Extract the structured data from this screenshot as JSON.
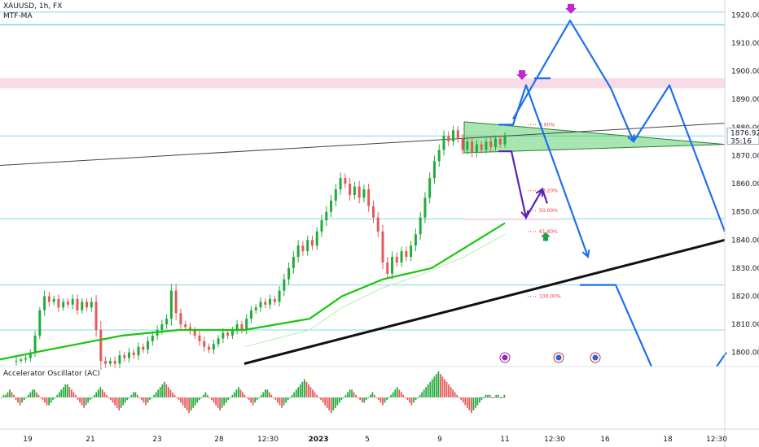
{
  "header": {
    "symbol": "XAUUSD, 1h, FX",
    "indicator": "MTF-MA",
    "oscillator": "Accelerator Oscillator (AC)"
  },
  "price_box": {
    "price": "1876.92",
    "countdown": "35:16"
  },
  "colors": {
    "bull": "#22ab3a",
    "bear": "#e45a5a",
    "ma": "#1ac40f",
    "projection": "#1e6ff0",
    "fib": "#f23645",
    "level": "#7fd8e8",
    "zone": "#f7dbe6",
    "marker_down": "#c026d3",
    "marker_up": "#16a34a",
    "purple_path": "#5b21b6"
  },
  "chart_data": {
    "type": "candlestick",
    "ylim": [
      1795,
      1923
    ],
    "y_ticks": [
      "1920.00",
      "1910.00",
      "1900.00",
      "1890.00",
      "1880.00",
      "1870.00",
      "1860.00",
      "1850.00",
      "1840.00",
      "1830.00",
      "1820.00",
      "1810.00",
      "1800.00"
    ],
    "y_values": [
      1920,
      1910,
      1900,
      1890,
      1880,
      1870,
      1860,
      1850,
      1840,
      1830,
      1820,
      1810,
      1800
    ],
    "x_ticks": [
      "19",
      "21",
      "23",
      "28",
      "12:30",
      "2023",
      "5",
      "9",
      "11",
      "12:30",
      "16",
      "18",
      "12:30"
    ],
    "horizontal_levels": [
      1921,
      1916.5,
      1877,
      1847.5,
      1824,
      1808
    ],
    "resistance_zone": [
      1894,
      1897.5
    ],
    "fib_levels": [
      {
        "label": "0.00%",
        "price": 1881
      },
      {
        "label": "38.20%",
        "price": 1857.5
      },
      {
        "label": "50.00%",
        "price": 1850.5
      },
      {
        "label": "61.80%",
        "price": 1843
      },
      {
        "label": "100.00%",
        "price": 1820
      }
    ],
    "last_price": 1876.92,
    "candle_path": [
      [
        1797,
        4
      ],
      [
        1797.5,
        2
      ],
      [
        1798,
        3
      ],
      [
        1800,
        3
      ],
      [
        1806,
        4
      ],
      [
        1815,
        3
      ],
      [
        1820,
        5
      ],
      [
        1818,
        4
      ],
      [
        1819,
        3
      ],
      [
        1816,
        4
      ],
      [
        1818,
        3
      ],
      [
        1817,
        3
      ],
      [
        1819,
        4
      ],
      [
        1815,
        4
      ],
      [
        1818,
        3
      ],
      [
        1816,
        3
      ],
      [
        1818,
        4
      ],
      [
        1808,
        6
      ],
      [
        1797,
        8
      ],
      [
        1796,
        4
      ],
      [
        1797,
        3
      ],
      [
        1796,
        4
      ],
      [
        1799,
        4
      ],
      [
        1798,
        3
      ],
      [
        1800,
        4
      ],
      [
        1799,
        3
      ],
      [
        1802,
        4
      ],
      [
        1801,
        3
      ],
      [
        1804,
        4
      ],
      [
        1806,
        4
      ],
      [
        1808,
        4
      ],
      [
        1810,
        4
      ],
      [
        1812,
        4
      ],
      [
        1822,
        6
      ],
      [
        1814,
        6
      ],
      [
        1810,
        4
      ],
      [
        1809,
        3
      ],
      [
        1808,
        4
      ],
      [
        1806,
        3
      ],
      [
        1804,
        4
      ],
      [
        1802,
        4
      ],
      [
        1801,
        3
      ],
      [
        1803,
        4
      ],
      [
        1805,
        3
      ],
      [
        1807,
        4
      ],
      [
        1806,
        3
      ],
      [
        1808,
        3
      ],
      [
        1810,
        4
      ],
      [
        1808,
        3
      ],
      [
        1812,
        4
      ],
      [
        1815,
        4
      ],
      [
        1816,
        3
      ],
      [
        1818,
        4
      ],
      [
        1817,
        3
      ],
      [
        1819,
        4
      ],
      [
        1818,
        3
      ],
      [
        1822,
        4
      ],
      [
        1826,
        5
      ],
      [
        1830,
        5
      ],
      [
        1834,
        5
      ],
      [
        1838,
        5
      ],
      [
        1836,
        4
      ],
      [
        1840,
        4
      ],
      [
        1838,
        4
      ],
      [
        1843,
        4
      ],
      [
        1847,
        5
      ],
      [
        1850,
        5
      ],
      [
        1854,
        5
      ],
      [
        1858,
        5
      ],
      [
        1862,
        5
      ],
      [
        1860,
        4
      ],
      [
        1856,
        5
      ],
      [
        1859,
        4
      ],
      [
        1855,
        5
      ],
      [
        1858,
        4
      ],
      [
        1852,
        5
      ],
      [
        1848,
        5
      ],
      [
        1843,
        5
      ],
      [
        1832,
        6
      ],
      [
        1828,
        5
      ],
      [
        1834,
        5
      ],
      [
        1832,
        4
      ],
      [
        1836,
        4
      ],
      [
        1834,
        4
      ],
      [
        1838,
        4
      ],
      [
        1842,
        5
      ],
      [
        1848,
        5
      ],
      [
        1855,
        5
      ],
      [
        1862,
        5
      ],
      [
        1868,
        5
      ],
      [
        1872,
        5
      ],
      [
        1877,
        5
      ],
      [
        1875,
        4
      ],
      [
        1879,
        4
      ],
      [
        1876,
        4
      ],
      [
        1872,
        4
      ],
      [
        1875,
        4
      ],
      [
        1871,
        4
      ],
      [
        1874,
        4
      ],
      [
        1872,
        3
      ],
      [
        1875,
        3
      ],
      [
        1873,
        4
      ],
      [
        1876,
        3
      ],
      [
        1874,
        3
      ],
      [
        1877,
        3
      ]
    ],
    "ma_fast": [
      [
        0,
        1797.5
      ],
      [
        60,
        1801
      ],
      [
        150,
        1806
      ],
      [
        220,
        1808
      ],
      [
        300,
        1808
      ],
      [
        380,
        1812
      ],
      [
        420,
        1820
      ],
      [
        470,
        1826
      ],
      [
        530,
        1830
      ],
      [
        575,
        1838
      ],
      [
        620,
        1846
      ]
    ],
    "ma_slow": [
      [
        300,
        1802
      ],
      [
        380,
        1808
      ],
      [
        420,
        1816
      ],
      [
        470,
        1823
      ],
      [
        520,
        1828
      ],
      [
        570,
        1834
      ],
      [
        620,
        1842
      ]
    ],
    "trendlines": {
      "upper_black": [
        [
          0,
          1866.5
        ],
        [
          890,
          1881.5
        ]
      ],
      "lower_black": [
        [
          300,
          1796
        ],
        [
          890,
          1840
        ]
      ],
      "triangle": [
        [
          570,
          1882
        ],
        [
          890,
          1874
        ],
        [
          570,
          1871
        ]
      ]
    },
    "projections": {
      "blue_main": [
        [
          612,
          1881
        ],
        [
          630,
          1881
        ],
        [
          646,
          1895
        ],
        [
          722,
          1834
        ]
      ],
      "blue_upper": [
        [
          630,
          1883
        ],
        [
          700,
          1918
        ],
        [
          750,
          1894
        ],
        [
          778,
          1875
        ],
        [
          822,
          1895
        ],
        [
          890,
          1843
        ]
      ],
      "blue_extension": [
        [
          656,
          1897.5
        ],
        [
          676,
          1897.5
        ]
      ],
      "blue_bottom": [
        [
          712,
          1824
        ],
        [
          756,
          1824
        ],
        [
          800,
          1795
        ]
      ],
      "blue_right_edge": [
        [
          880,
          1795
        ],
        [
          892,
          1800
        ]
      ],
      "purple_path": [
        [
          612,
          1871.5
        ],
        [
          628,
          1871.5
        ],
        [
          646,
          1848
        ],
        [
          666,
          1858
        ],
        [
          672,
          1853
        ]
      ]
    },
    "osc_bars": [
      0,
      1,
      1,
      2,
      3,
      2,
      1,
      -1,
      -2,
      -3,
      -2,
      -1,
      0,
      1,
      2,
      3,
      3,
      2,
      1,
      0,
      -1,
      -2,
      -3,
      -3,
      -2,
      -1,
      0,
      1,
      2,
      3,
      4,
      5,
      5,
      4,
      3,
      2,
      1,
      -1,
      -2,
      -3,
      -4,
      -3,
      -2,
      -1,
      0,
      1,
      2,
      3,
      4,
      3,
      2,
      1,
      0,
      -1,
      -2,
      -3,
      -4,
      -5,
      -4,
      -3,
      -2,
      -1,
      0,
      1,
      2,
      2,
      1,
      0,
      -1,
      -2,
      -3,
      -2,
      -1,
      0,
      1,
      2,
      3,
      4,
      5,
      6,
      5,
      4,
      3,
      2,
      1,
      0,
      -1,
      -2,
      -3,
      -4,
      -5,
      -6,
      -5,
      -4,
      -3,
      -2,
      -1,
      0,
      1,
      2,
      1,
      0,
      -1,
      -2,
      -3,
      -4,
      -5,
      -4,
      -3,
      -2,
      -1,
      0,
      1,
      2,
      3,
      4,
      3,
      2,
      1,
      0,
      -1,
      -2,
      -3,
      -2,
      -1,
      0,
      1,
      2,
      3,
      3,
      2,
      1,
      0,
      -1,
      -2,
      -3,
      -4,
      -3,
      -2,
      -1,
      0,
      1,
      2,
      3,
      4,
      5,
      6,
      7,
      6,
      5,
      4,
      3,
      2,
      1,
      0,
      -1,
      -2,
      -3,
      -4,
      -5,
      -6,
      -5,
      -4,
      -3,
      -2,
      -1,
      0,
      1,
      2,
      3,
      3,
      2,
      1,
      0,
      -1,
      -2,
      -2,
      -1,
      0,
      1,
      2,
      1,
      0,
      -1,
      -2,
      -3,
      -2,
      -1,
      0,
      1,
      2,
      3,
      4,
      3,
      2,
      1,
      0,
      -1,
      -2,
      -3,
      -2,
      -1,
      0,
      1,
      2,
      3,
      4,
      5,
      6,
      7,
      8,
      9,
      10,
      9,
      8,
      7,
      6,
      5,
      4,
      3,
      2,
      1,
      0,
      -1,
      -2,
      -3,
      -4,
      -5,
      -6,
      -5,
      -4,
      -3,
      -2,
      -1,
      0,
      1,
      1,
      1,
      0,
      0,
      1,
      1,
      0,
      0,
      1
    ]
  }
}
